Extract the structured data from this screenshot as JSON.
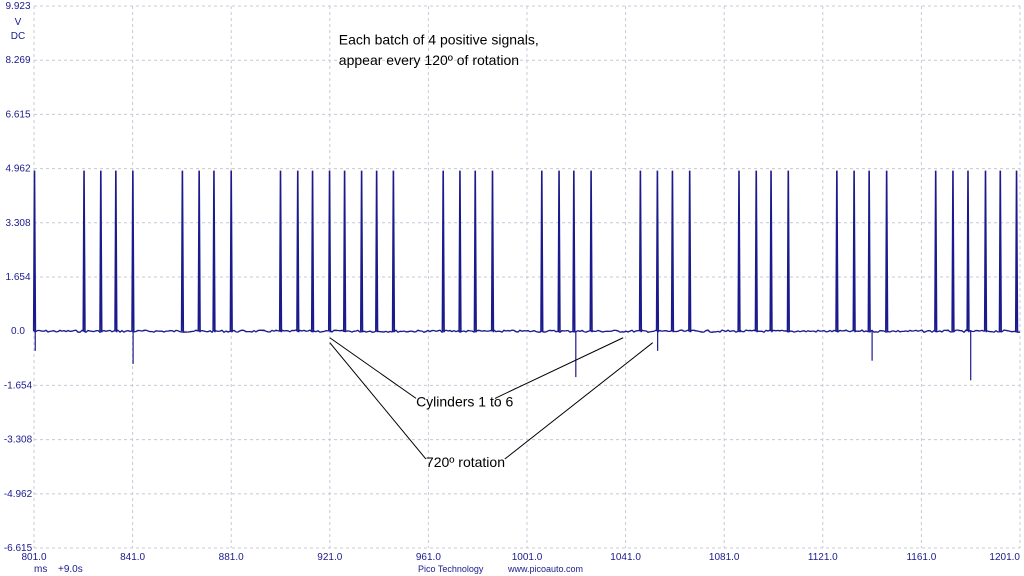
{
  "chart_data": {
    "type": "line",
    "title": "",
    "xlabel": "ms",
    "ylabel": "V",
    "y_unit_lines": [
      "V",
      "DC"
    ],
    "x_offset_label": "+9.0s",
    "xlim": [
      801.0,
      1201.0
    ],
    "ylim": [
      -6.615,
      9.923
    ],
    "y_ticks": [
      "9.923",
      "8.269",
      "6.615",
      "4.962",
      "3.308",
      "1.654",
      "0.0",
      "-1.654",
      "-3.308",
      "-4.962",
      "-6.615"
    ],
    "y_tick_values": [
      9.923,
      8.269,
      6.615,
      4.962,
      3.308,
      1.654,
      0.0,
      -1.654,
      -3.308,
      -4.962,
      -6.615
    ],
    "x_ticks": [
      "801.0",
      "841.0",
      "881.0",
      "921.0",
      "961.0",
      "1001.0",
      "1041.0",
      "1081.0",
      "1121.0",
      "1161.0",
      "1201.0"
    ],
    "x_tick_values": [
      801,
      841,
      881,
      921,
      961,
      1001,
      1041,
      1081,
      1121,
      1161,
      1201
    ],
    "grid": true,
    "series": [
      {
        "color": "#1a1a8c",
        "baseline": 0.0,
        "spike_peak": 4.9,
        "positive_spikes_x": [
          801.2,
          821.3,
          828.1,
          834.2,
          841.1,
          861.2,
          868.0,
          874.0,
          881.0,
          901.0,
          908.0,
          914.0,
          920.9,
          927.0,
          933.9,
          940.0,
          946.8,
          967.0,
          973.8,
          980.0,
          987.0,
          1007.0,
          1014.0,
          1020.0,
          1027.0,
          1047.0,
          1053.9,
          1060.0,
          1067.0,
          1087.0,
          1094.0,
          1100.0,
          1107.0,
          1126.7,
          1133.7,
          1139.8,
          1146.9,
          1166.8,
          1173.8,
          1179.9,
          1187.0,
          1193.0,
          1199.6
        ],
        "negative_spikes": [
          {
            "x": 801.5,
            "y": -0.6
          },
          {
            "x": 841.2,
            "y": -1.0
          },
          {
            "x": 1020.8,
            "y": -1.4
          },
          {
            "x": 1054.0,
            "y": -0.6
          },
          {
            "x": 1141.0,
            "y": -0.9
          },
          {
            "x": 1181.0,
            "y": -1.5
          }
        ]
      }
    ],
    "annotations": [
      {
        "text": "Each batch of 4 positive signals,",
        "x": 921.0,
        "y": 8.75
      },
      {
        "text": "appear every 120º of rotation",
        "x": 921.0,
        "y": 8.12
      },
      {
        "text": "Cylinders 1 to 6",
        "x": 956.0,
        "y": -2.3
      },
      {
        "text": "720º rotation",
        "x": 960.0,
        "y": -4.15
      }
    ],
    "pointer_lines": [
      {
        "from": [
          921.0,
          -0.2
        ],
        "to": [
          956.0,
          -2.05
        ]
      },
      {
        "from": [
          1040.0,
          -0.2
        ],
        "to": [
          988.0,
          -2.05
        ]
      },
      {
        "from": [
          921.0,
          -0.35
        ],
        "to": [
          960.0,
          -3.9
        ]
      },
      {
        "from": [
          1052.0,
          -0.35
        ],
        "to": [
          992.0,
          -3.9
        ]
      }
    ]
  },
  "footer": {
    "brand": "Pico Technology",
    "url": "www.picoauto.com"
  }
}
